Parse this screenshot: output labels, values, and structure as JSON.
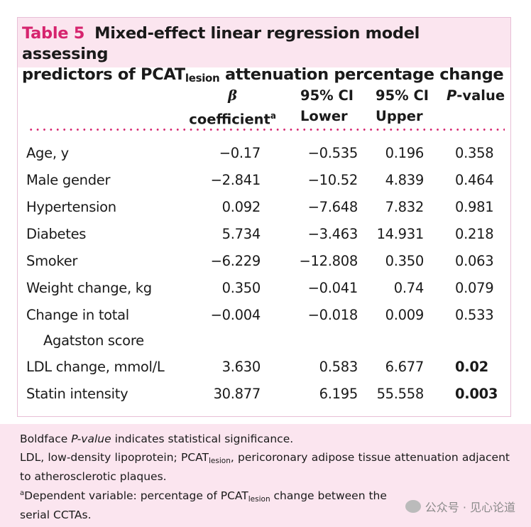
{
  "title": {
    "number": "Table 5",
    "line1": "Mixed-effect linear regression model assessing",
    "line2_pre": "predictors of PCAT",
    "line2_sub": "lesion",
    "line2_post": " attenuation percentage change"
  },
  "headers": {
    "beta_symbol": "β",
    "beta_label": "coefficient",
    "beta_sup": "a",
    "ci_lower_1": "95% CI",
    "ci_lower_2": "Lower",
    "ci_upper_1": "95% CI",
    "ci_upper_2": "Upper",
    "p_italic": "P",
    "p_rest": "-value"
  },
  "rows": [
    {
      "label": "Age, y",
      "beta": "−0.17",
      "lower": "−0.535",
      "upper": "0.196",
      "p": "0.358"
    },
    {
      "label": "Male gender",
      "beta": "−2.841",
      "lower": "−10.52",
      "upper": "4.839",
      "p": "0.464"
    },
    {
      "label": "Hypertension",
      "beta": "0.092",
      "lower": "−7.648",
      "upper": "7.832",
      "p": "0.981"
    },
    {
      "label": "Diabetes",
      "beta": "5.734",
      "lower": "−3.463",
      "upper": "14.931",
      "p": "0.218"
    },
    {
      "label": "Smoker",
      "beta": "−6.229",
      "lower": "−12.808",
      "upper": "0.350",
      "p": "0.063"
    },
    {
      "label": "Weight change, kg",
      "beta": "0.350",
      "lower": "−0.041",
      "upper": "0.74",
      "p": "0.079"
    },
    {
      "label": "Change in total",
      "label2": "Agatston score",
      "beta": "−0.004",
      "lower": "−0.018",
      "upper": "0.009",
      "p": "0.533"
    },
    {
      "label": "LDL change, mmol/L",
      "beta": "3.630",
      "lower": "0.583",
      "upper": "6.677",
      "p": "0.02"
    },
    {
      "label": "Statin intensity",
      "beta": "30.877",
      "lower": "6.195",
      "upper": "55.558",
      "p": "0.003"
    }
  ],
  "footnotes": {
    "note1_pre": "Boldface ",
    "note1_italic": "P-value",
    "note1_post": " indicates statistical significance.",
    "note2_pre": "LDL, low-density lipoprotein; PCAT",
    "note2_sub": "lesion",
    "note2_post": ", pericoronary adipose tissue attenuation adjacent to atherosclerotic plaques.",
    "note3_sup": "a",
    "note3_pre": "Dependent variable: percentage of PCAT",
    "note3_sub": "lesion",
    "note3_post": " change between the serial CCTAs."
  },
  "watermark": "公众号 · 见心论道"
}
